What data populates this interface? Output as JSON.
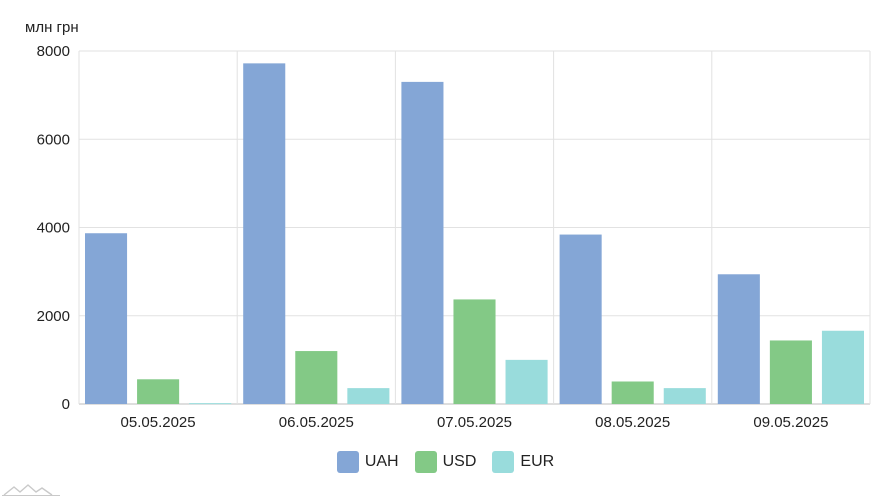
{
  "chart_data": {
    "type": "bar",
    "unit_label": "млн грн",
    "categories": [
      "05.05.2025",
      "06.05.2025",
      "07.05.2025",
      "08.05.2025",
      "09.05.2025"
    ],
    "series": [
      {
        "name": "UAH",
        "color": "#84a6d6",
        "values": [
          3870,
          7720,
          7300,
          3840,
          2940
        ]
      },
      {
        "name": "USD",
        "color": "#83c986",
        "values": [
          560,
          1200,
          2370,
          510,
          1440
        ]
      },
      {
        "name": "EUR",
        "color": "#99dcdc",
        "values": [
          20,
          360,
          1000,
          360,
          1660
        ]
      }
    ],
    "ylim": [
      0,
      8000
    ],
    "yticks": [
      0,
      2000,
      4000,
      6000,
      8000
    ],
    "grid": true,
    "legend_position": "bottom"
  }
}
